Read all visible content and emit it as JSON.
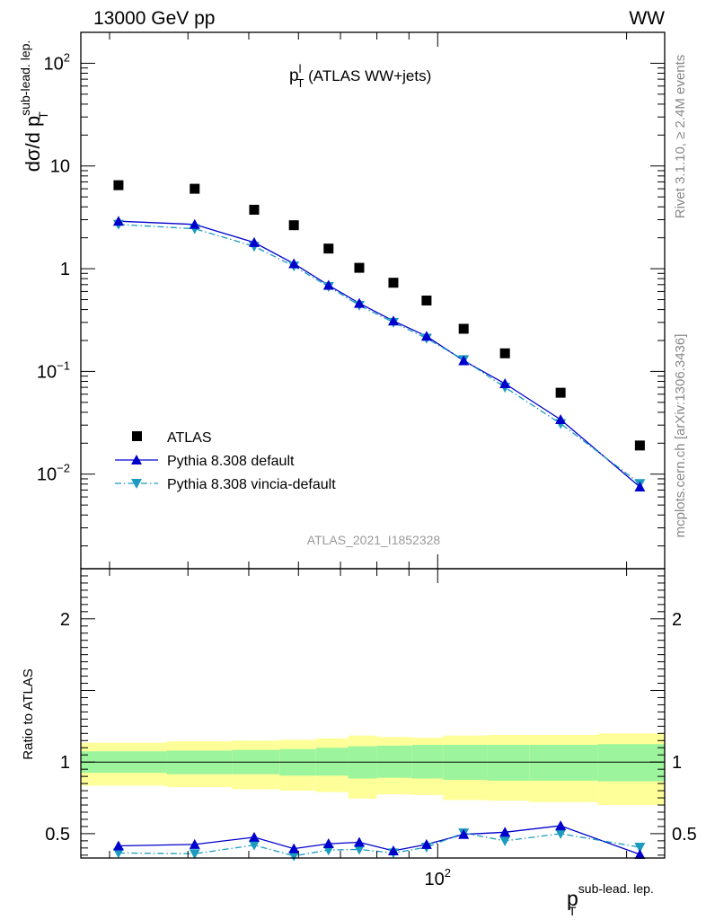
{
  "header": {
    "left": "13000 GeV pp",
    "right": "WW"
  },
  "side_text": {
    "rivet": "Rivet 3.1.10, ≥ 2.4M events",
    "mcplots": "mcplots.cern.ch [arXiv:1306.3436]"
  },
  "plot_title": {
    "main": "p",
    "sup": "l",
    "sub": "T",
    "rest": " (ATLAS WW+jets)"
  },
  "analysis_id": "ATLAS_2021_I1852328",
  "main_ylabel": {
    "prefix": "dσ/d p",
    "sub": "T",
    "sup": "sub-lead. lep."
  },
  "ratio_ylabel": "Ratio to ATLAS",
  "xlabel": {
    "main": "p",
    "sub": "T",
    "sup": "sub-lead. lep."
  },
  "colors": {
    "data": "#000000",
    "default": "#0000cc",
    "vincia": "#1a9bbf",
    "band_inner": "#9cf59c",
    "band_outer": "#ffff99"
  },
  "chart_data": [
    {
      "type": "scatter",
      "name": "main",
      "xscale": "log",
      "yscale": "log",
      "xlim": [
        27,
        230
      ],
      "ylim": [
        0.0012,
        200
      ],
      "x_ticks": [
        {
          "value": 100,
          "label": "10^2"
        }
      ],
      "y_ticks": [
        {
          "value": 0.01,
          "label": "10^-2"
        },
        {
          "value": 0.1,
          "label": "10^-1"
        },
        {
          "value": 1,
          "label": "1"
        },
        {
          "value": 10,
          "label": "10"
        },
        {
          "value": 100,
          "label": "10^2"
        }
      ],
      "legend_position": "bottom-left",
      "series": [
        {
          "name": "ATLAS",
          "style": "square",
          "x": [
            31,
            41,
            51,
            59,
            67,
            75,
            85,
            96,
            110,
            128,
            157,
            210
          ],
          "y": [
            6.5,
            6.0,
            3.75,
            2.65,
            1.57,
            1.02,
            0.73,
            0.49,
            0.26,
            0.15,
            0.062,
            0.019
          ]
        },
        {
          "name": "Pythia 8.308 default",
          "style": "triangle-up-line",
          "x": [
            31,
            41,
            51,
            59,
            67,
            75,
            85,
            96,
            110,
            128,
            157,
            210
          ],
          "y": [
            2.9,
            2.7,
            1.8,
            1.12,
            0.69,
            0.46,
            0.31,
            0.22,
            0.127,
            0.076,
            0.034,
            0.0075
          ]
        },
        {
          "name": "Pythia 8.308 vincia-default",
          "style": "triangle-down-dashdot",
          "x": [
            31,
            41,
            51,
            59,
            67,
            75,
            85,
            96,
            110,
            128,
            157,
            210
          ],
          "y": [
            2.7,
            2.45,
            1.65,
            1.06,
            0.67,
            0.44,
            0.3,
            0.21,
            0.13,
            0.07,
            0.031,
            0.0081
          ]
        }
      ]
    },
    {
      "type": "scatter",
      "name": "ratio",
      "xscale": "log",
      "xlim": [
        27,
        230
      ],
      "ylim": [
        0.33,
        2.35
      ],
      "y_ticks": [
        {
          "value": 0.5,
          "label": "0.5"
        },
        {
          "value": 1,
          "label": "1"
        },
        {
          "value": 2,
          "label": "2"
        }
      ],
      "bands": {
        "edges": [
          27,
          37,
          47,
          56,
          64,
          72,
          80,
          91,
          102,
          120,
          140,
          180,
          230
        ],
        "inner_lo": [
          0.925,
          0.915,
          0.915,
          0.905,
          0.905,
          0.885,
          0.89,
          0.885,
          0.875,
          0.87,
          0.87,
          0.865
        ],
        "inner_hi": [
          1.075,
          1.08,
          1.085,
          1.09,
          1.1,
          1.11,
          1.115,
          1.12,
          1.12,
          1.12,
          1.12,
          1.125
        ],
        "outer_lo": [
          0.835,
          0.825,
          0.81,
          0.8,
          0.79,
          0.745,
          0.775,
          0.77,
          0.735,
          0.73,
          0.72,
          0.7
        ],
        "outer_hi": [
          1.135,
          1.145,
          1.15,
          1.155,
          1.165,
          1.185,
          1.175,
          1.17,
          1.185,
          1.19,
          1.19,
          1.2
        ]
      },
      "series": [
        {
          "name": "Pythia 8.308 default",
          "x": [
            31,
            41,
            51,
            59,
            67,
            75,
            85,
            96,
            110,
            128,
            157,
            210
          ],
          "y": [
            0.415,
            0.425,
            0.475,
            0.395,
            0.43,
            0.44,
            0.38,
            0.425,
            0.495,
            0.51,
            0.555,
            0.355
          ]
        },
        {
          "name": "Pythia 8.308 vincia-default",
          "x": [
            31,
            41,
            51,
            59,
            67,
            75,
            85,
            96,
            110,
            128,
            157,
            210
          ],
          "y": [
            0.365,
            0.36,
            0.42,
            0.345,
            0.385,
            0.39,
            0.365,
            0.405,
            0.505,
            0.45,
            0.5,
            0.405
          ]
        }
      ]
    }
  ]
}
